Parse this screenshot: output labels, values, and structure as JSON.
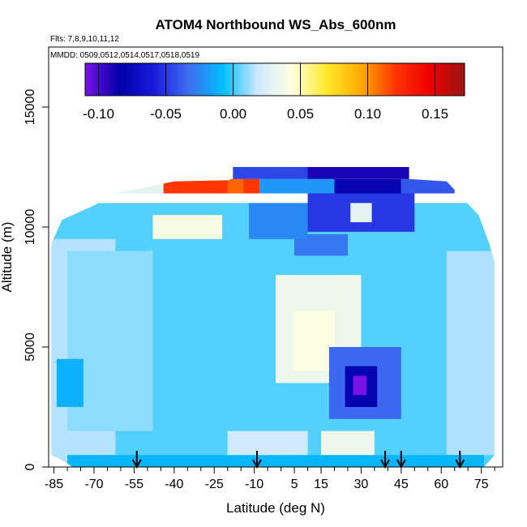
{
  "chart_data": {
    "type": "heatmap",
    "title": "ATOM4 Northbound WS_Abs_600nm",
    "subtitle_lines": [
      "Flts: 7,8,9,10,11,12",
      "MMDD: 0509,0512,0514,0517,0518,0519"
    ],
    "xlabel": "Latitude (deg N)",
    "ylabel": "Altitude (m)",
    "xlim": [
      -87,
      83
    ],
    "ylim": [
      0,
      17500
    ],
    "x_ticks": [
      -85,
      -70,
      -55,
      -40,
      -25,
      -10,
      5,
      15,
      30,
      45,
      60,
      75
    ],
    "x_minor_ticks": [
      -80,
      -75,
      -65,
      -60,
      -50,
      -45,
      -35,
      -30,
      -20,
      -15,
      -5,
      0,
      10,
      20,
      25,
      35,
      40,
      50,
      55,
      65,
      70,
      80
    ],
    "y_ticks": [
      0,
      5000,
      10000,
      15000
    ],
    "colorbar": {
      "ticks": [
        -0.1,
        -0.05,
        0.0,
        0.05,
        0.1,
        0.15
      ],
      "tick_labels": [
        "-0.10",
        "-0.05",
        "0.00",
        "0.05",
        "0.10",
        "0.15"
      ],
      "range": [
        -0.11,
        0.172
      ],
      "colors": [
        "#7a12e8",
        "#0000a8",
        "#1a1adc",
        "#3e6ef0",
        "#00bfff",
        "#cfe8ff",
        "#ffffe0",
        "#ffea2a",
        "#ffaa00",
        "#ff3300",
        "#ee0000",
        "#9a1515"
      ]
    },
    "flight_markers_lat": [
      -54,
      -9,
      39,
      45,
      67
    ],
    "grid": false,
    "legend": "colorbar top",
    "regions": [
      {
        "lat": [
          -86,
          80
        ],
        "alt": [
          0,
          11000
        ],
        "value": 0.003
      },
      {
        "lat": [
          -86,
          -62
        ],
        "alt": [
          0,
          9500
        ],
        "value": 0.015
      },
      {
        "lat": [
          -80,
          -48
        ],
        "alt": [
          1500,
          9000
        ],
        "value": 0.01
      },
      {
        "lat": [
          62,
          80
        ],
        "alt": [
          500,
          9000
        ],
        "value": 0.014
      },
      {
        "lat": [
          -84,
          -74
        ],
        "alt": [
          2500,
          4500
        ],
        "value": -0.012
      },
      {
        "lat": [
          -2,
          30
        ],
        "alt": [
          3500,
          8000
        ],
        "value": 0.035
      },
      {
        "lat": [
          5,
          20
        ],
        "alt": [
          4000,
          6500
        ],
        "value": 0.043
      },
      {
        "lat": [
          18,
          45
        ],
        "alt": [
          2000,
          5000
        ],
        "value": -0.035
      },
      {
        "lat": [
          24,
          36
        ],
        "alt": [
          2500,
          4200
        ],
        "value": -0.08
      },
      {
        "lat": [
          27,
          32
        ],
        "alt": [
          3000,
          3800
        ],
        "value": -0.11
      },
      {
        "lat": [
          -80,
          76
        ],
        "alt": [
          0,
          500
        ],
        "value": -0.01
      },
      {
        "lat": [
          15,
          35
        ],
        "alt": [
          500,
          1500
        ],
        "value": 0.035
      },
      {
        "lat": [
          -20,
          10
        ],
        "alt": [
          500,
          1500
        ],
        "value": 0.02
      },
      {
        "lat": [
          -48,
          -22
        ],
        "alt": [
          9500,
          10500
        ],
        "value": 0.04
      },
      {
        "lat": [
          5,
          25
        ],
        "alt": [
          8800,
          9700
        ],
        "value": -0.03
      },
      {
        "lat": [
          -12,
          10
        ],
        "alt": [
          9500,
          11000
        ],
        "value": -0.025
      },
      {
        "lat": [
          10,
          50
        ],
        "alt": [
          9800,
          11500
        ],
        "value": -0.05
      },
      {
        "lat": [
          26,
          34
        ],
        "alt": [
          10200,
          11000
        ],
        "value": 0.03
      },
      {
        "lat": [
          -70,
          -30
        ],
        "alt": [
          11400,
          12000
        ],
        "value": 0.03
      },
      {
        "lat": [
          -44,
          -8
        ],
        "alt": [
          11400,
          12000
        ],
        "value": 0.12
      },
      {
        "lat": [
          -20,
          -14
        ],
        "alt": [
          11400,
          12000
        ],
        "value": 0.11
      },
      {
        "lat": [
          -8,
          20
        ],
        "alt": [
          11400,
          12000
        ],
        "value": -0.02
      },
      {
        "lat": [
          20,
          45
        ],
        "alt": [
          11400,
          12000
        ],
        "value": -0.08
      },
      {
        "lat": [
          45,
          65
        ],
        "alt": [
          11400,
          12000
        ],
        "value": -0.04
      },
      {
        "lat": [
          -18,
          10
        ],
        "alt": [
          12000,
          12500
        ],
        "value": -0.045
      },
      {
        "lat": [
          10,
          48
        ],
        "alt": [
          12000,
          12500
        ],
        "value": -0.09
      }
    ]
  }
}
